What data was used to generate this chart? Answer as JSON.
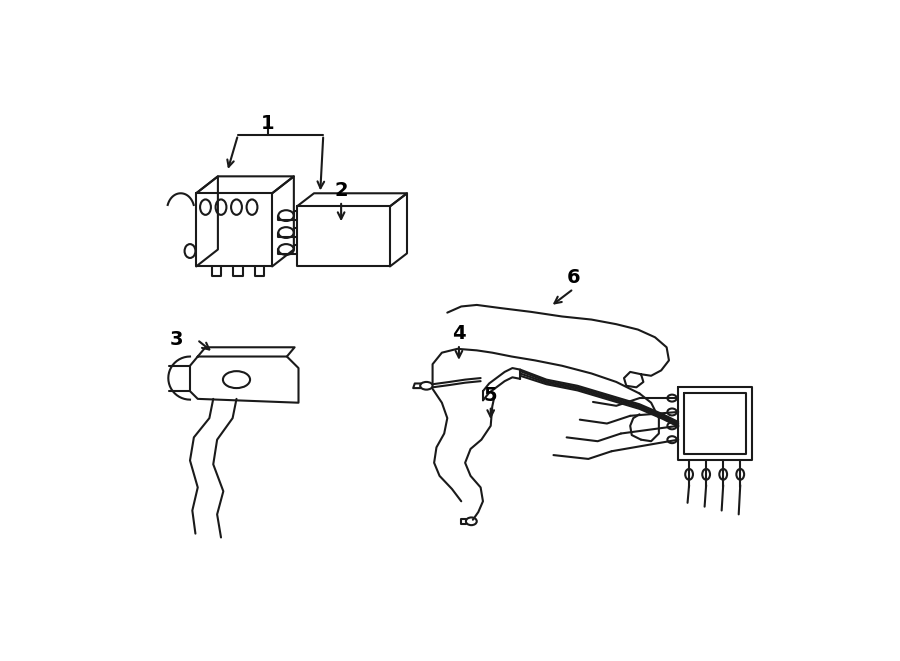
{
  "background_color": "#ffffff",
  "line_color": "#1a1a1a",
  "text_color": "#000000",
  "fig_width": 9.0,
  "fig_height": 6.61,
  "dpi": 100
}
